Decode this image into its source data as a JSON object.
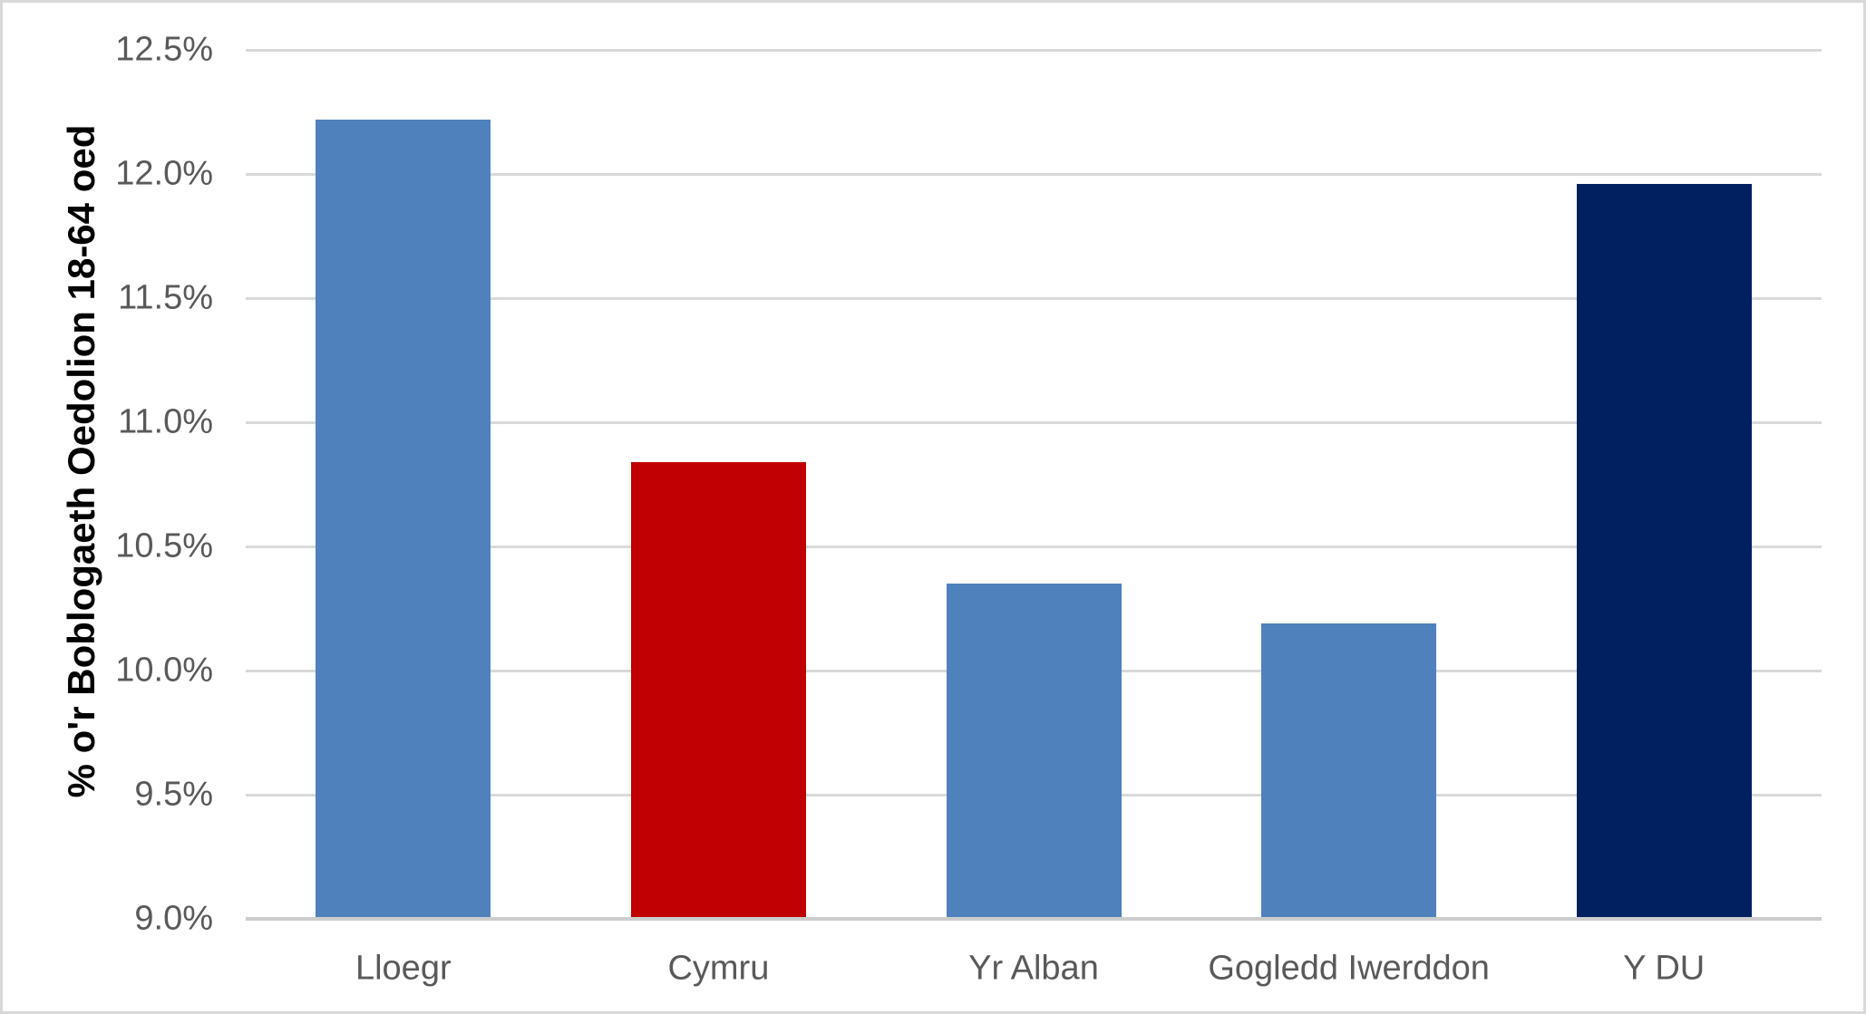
{
  "chart_data": {
    "type": "bar",
    "categories": [
      "Lloegr",
      "Cymru",
      "Yr Alban",
      "Gogledd Iwerddon",
      "Y DU"
    ],
    "values": [
      12.22,
      10.84,
      10.35,
      10.19,
      11.96
    ],
    "bar_colors": [
      "#4F81BD",
      "#C00000",
      "#4F81BD",
      "#4F81BD",
      "#002060"
    ],
    "title": "",
    "xlabel": "",
    "ylabel": "% o'r Boblogaeth Oedolion 18-64 oed",
    "ylim": [
      9.0,
      12.5
    ],
    "ytick_step": 0.5,
    "ytick_labels": [
      "9.0%",
      "9.5%",
      "10.0%",
      "10.5%",
      "11.0%",
      "11.5%",
      "12.0%",
      "12.5%"
    ],
    "grid": true,
    "legend": false
  },
  "style": {
    "background": "#FFFFFF",
    "border_color": "#D8D8D8",
    "gridline_color": "#D9D9D9",
    "axis_line_color": "#CDCDCD",
    "tick_text_color": "#595959",
    "axis_title_color": "#000000"
  }
}
